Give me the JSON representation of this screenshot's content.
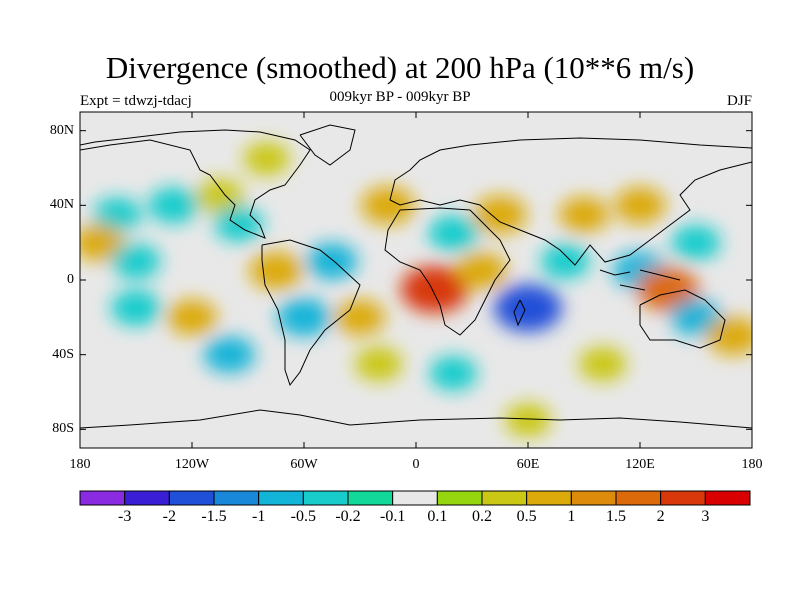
{
  "title": "Divergence (smoothed) at 200 hPa (10**6 m/s)",
  "subtitle": "009kyr BP - 009kyr BP",
  "left_label": "Expt = tdwzj-tdacj",
  "right_label": "DJF",
  "map": {
    "projection": "cylindrical-equidistant",
    "lon_range": [
      -180,
      180
    ],
    "lat_range": [
      -90,
      90
    ],
    "lat_ticks": [
      {
        "value": 80,
        "label": "80N"
      },
      {
        "value": 40,
        "label": "40N"
      },
      {
        "value": 0,
        "label": "0"
      },
      {
        "value": -40,
        "label": "40S"
      },
      {
        "value": -80,
        "label": "80S"
      }
    ],
    "lon_ticks": [
      {
        "value": -180,
        "label": "180"
      },
      {
        "value": -120,
        "label": "120W"
      },
      {
        "value": -60,
        "label": "60W"
      },
      {
        "value": 0,
        "label": "0"
      },
      {
        "value": 60,
        "label": "60E"
      },
      {
        "value": 120,
        "label": "120E"
      },
      {
        "value": 180,
        "label": "180"
      }
    ],
    "background_color": "#e8e8e8",
    "coastline_color": "#000000",
    "fields": [
      {
        "lon": -160,
        "lat": 35,
        "value": -0.3
      },
      {
        "lon": -170,
        "lat": 20,
        "value": 0.6
      },
      {
        "lon": -150,
        "lat": 10,
        "value": -0.4
      },
      {
        "lon": -150,
        "lat": -15,
        "value": -0.5
      },
      {
        "lon": -120,
        "lat": -20,
        "value": 0.5
      },
      {
        "lon": -130,
        "lat": 40,
        "value": -0.5
      },
      {
        "lon": -105,
        "lat": 45,
        "value": 0.3
      },
      {
        "lon": -95,
        "lat": 30,
        "value": -0.4
      },
      {
        "lon": -80,
        "lat": 65,
        "value": 0.2
      },
      {
        "lon": -100,
        "lat": -40,
        "value": -0.6
      },
      {
        "lon": -75,
        "lat": 5,
        "value": 0.8
      },
      {
        "lon": -60,
        "lat": -20,
        "value": -0.8
      },
      {
        "lon": -45,
        "lat": 10,
        "value": -0.6
      },
      {
        "lon": -30,
        "lat": -20,
        "value": 0.5
      },
      {
        "lon": -15,
        "lat": 40,
        "value": 0.8
      },
      {
        "lon": 10,
        "lat": -5,
        "value": 2.0
      },
      {
        "lon": 20,
        "lat": 25,
        "value": -0.5
      },
      {
        "lon": 35,
        "lat": 5,
        "value": 0.6
      },
      {
        "lon": 45,
        "lat": 35,
        "value": 0.8
      },
      {
        "lon": 60,
        "lat": -15,
        "value": -2.0
      },
      {
        "lon": 80,
        "lat": 10,
        "value": -0.4
      },
      {
        "lon": 90,
        "lat": 35,
        "value": 0.5
      },
      {
        "lon": 120,
        "lat": 5,
        "value": -0.8
      },
      {
        "lon": 135,
        "lat": -5,
        "value": 1.5
      },
      {
        "lon": 120,
        "lat": 40,
        "value": 0.6
      },
      {
        "lon": 150,
        "lat": 20,
        "value": -0.4
      },
      {
        "lon": 150,
        "lat": -20,
        "value": -0.6
      },
      {
        "lon": 170,
        "lat": -30,
        "value": 0.8
      },
      {
        "lon": 20,
        "lat": -50,
        "value": -0.3
      },
      {
        "lon": 100,
        "lat": -45,
        "value": 0.3
      },
      {
        "lon": -20,
        "lat": -45,
        "value": 0.3
      },
      {
        "lon": 60,
        "lat": -75,
        "value": 0.2
      }
    ]
  },
  "colorbar": {
    "colors": [
      "#8a2be2",
      "#3a1ed6",
      "#2050d8",
      "#1a88d8",
      "#12b4d8",
      "#18cccc",
      "#12d89a",
      "#e8e8e8",
      "#96d60e",
      "#cac814",
      "#dcaa0a",
      "#dc8c0a",
      "#dc6a0a",
      "#d8380a",
      "#d80000"
    ],
    "labels": [
      "-3",
      "-2",
      "-1.5",
      "-1",
      "-0.5",
      "-0.2",
      "-0.1",
      "0.1",
      "0.2",
      "0.5",
      "1",
      "1.5",
      "2",
      "3"
    ],
    "levels": [
      -3,
      -2,
      -1.5,
      -1,
      -0.5,
      -0.2,
      -0.1,
      0.1,
      0.2,
      0.5,
      1,
      1.5,
      2,
      3
    ]
  }
}
